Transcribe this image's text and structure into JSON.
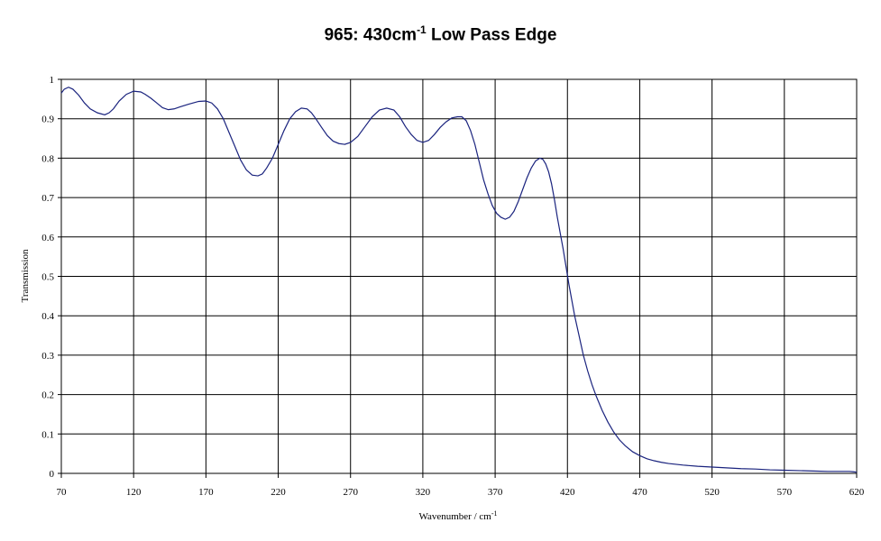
{
  "chart_data": {
    "type": "line",
    "title": {
      "main": "965: 430cm",
      "superscript": "-1",
      "suffix": " Low Pass Edge"
    },
    "xlabel": {
      "main": "Wavenumber / cm",
      "superscript": "-1"
    },
    "ylabel": "Transmission",
    "xlim": [
      70,
      620
    ],
    "ylim": [
      0,
      1
    ],
    "x_ticks": [
      "70",
      "120",
      "170",
      "220",
      "270",
      "320",
      "370",
      "420",
      "470",
      "520",
      "570",
      "620"
    ],
    "y_ticks": [
      "0",
      "0.1",
      "0.2",
      "0.3",
      "0.4",
      "0.5",
      "0.6",
      "0.7",
      "0.8",
      "0.9",
      "1"
    ],
    "grid": true,
    "legend": "none",
    "series": [
      {
        "color": "#1a237e",
        "x": [
          70,
          72,
          75,
          78,
          82,
          86,
          90,
          95,
          100,
          103,
          106,
          110,
          115,
          120,
          125,
          128,
          132,
          136,
          140,
          144,
          148,
          152,
          158,
          165,
          170,
          174,
          178,
          182,
          186,
          190,
          194,
          198,
          202,
          206,
          209,
          212,
          216,
          220,
          224,
          228,
          232,
          236,
          240,
          243,
          246,
          250,
          254,
          258,
          262,
          266,
          270,
          275,
          280,
          285,
          290,
          295,
          300,
          304,
          308,
          312,
          316,
          320,
          324,
          328,
          332,
          336,
          340,
          344,
          347,
          350,
          353,
          356,
          359,
          362,
          365,
          368,
          371,
          374,
          377,
          380,
          383,
          386,
          389,
          392,
          395,
          398,
          401,
          403,
          405,
          407,
          409,
          411,
          413,
          415,
          417,
          419,
          421,
          423,
          425,
          428,
          431,
          434,
          437,
          440,
          444,
          448,
          452,
          456,
          460,
          465,
          470,
          475,
          480,
          485,
          490,
          500,
          510,
          520,
          530,
          540,
          550,
          560,
          570,
          580,
          590,
          600,
          610,
          615,
          618,
          620
        ],
        "values": [
          0.965,
          0.975,
          0.98,
          0.975,
          0.96,
          0.94,
          0.925,
          0.915,
          0.91,
          0.915,
          0.925,
          0.945,
          0.962,
          0.97,
          0.968,
          0.962,
          0.952,
          0.94,
          0.928,
          0.923,
          0.925,
          0.93,
          0.937,
          0.944,
          0.945,
          0.94,
          0.925,
          0.9,
          0.865,
          0.83,
          0.795,
          0.77,
          0.757,
          0.755,
          0.76,
          0.775,
          0.8,
          0.835,
          0.87,
          0.9,
          0.918,
          0.927,
          0.925,
          0.915,
          0.9,
          0.878,
          0.857,
          0.843,
          0.837,
          0.835,
          0.84,
          0.855,
          0.88,
          0.905,
          0.922,
          0.927,
          0.922,
          0.905,
          0.88,
          0.86,
          0.845,
          0.84,
          0.845,
          0.86,
          0.878,
          0.892,
          0.902,
          0.905,
          0.905,
          0.895,
          0.87,
          0.835,
          0.79,
          0.745,
          0.71,
          0.68,
          0.66,
          0.65,
          0.645,
          0.65,
          0.665,
          0.69,
          0.72,
          0.75,
          0.775,
          0.793,
          0.8,
          0.797,
          0.785,
          0.765,
          0.735,
          0.695,
          0.65,
          0.61,
          0.57,
          0.525,
          0.48,
          0.44,
          0.4,
          0.35,
          0.3,
          0.26,
          0.225,
          0.195,
          0.16,
          0.13,
          0.105,
          0.085,
          0.07,
          0.055,
          0.045,
          0.037,
          0.032,
          0.028,
          0.025,
          0.021,
          0.018,
          0.016,
          0.014,
          0.012,
          0.011,
          0.009,
          0.008,
          0.007,
          0.006,
          0.005,
          0.005,
          0.005,
          0.004,
          0.003
        ]
      }
    ]
  }
}
